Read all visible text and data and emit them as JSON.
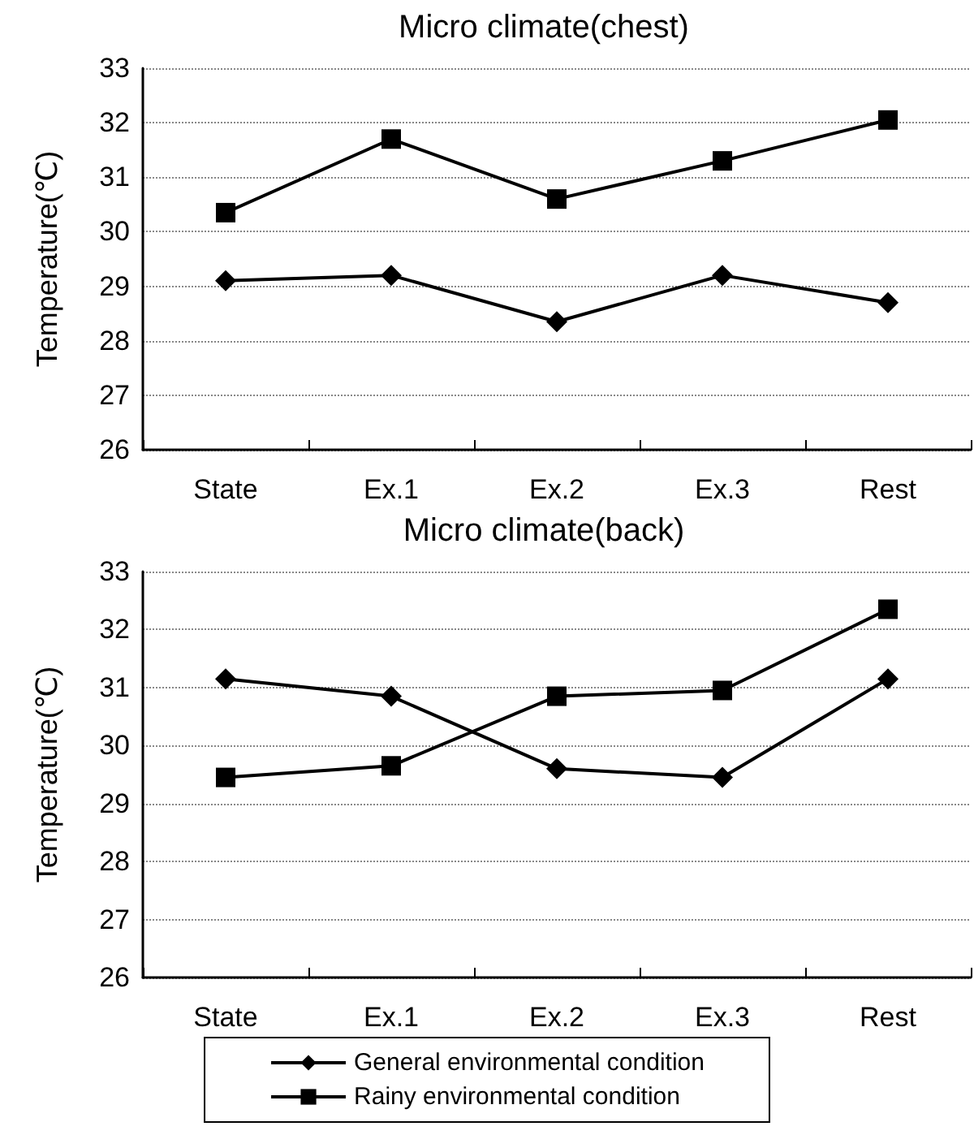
{
  "chart_data": [
    {
      "type": "line",
      "title": "Micro climate(chest)",
      "ylabel": "Temperature(℃)",
      "categories": [
        "State",
        "Ex.1",
        "Ex.2",
        "Ex.3",
        "Rest"
      ],
      "ylim": [
        26,
        33
      ],
      "yticks": [
        26,
        27,
        28,
        29,
        30,
        31,
        32,
        33
      ],
      "grid": "y",
      "legend": false,
      "line_style": "solid",
      "series": [
        {
          "color": "#000000",
          "marker": "diamond",
          "values": [
            29.1,
            29.2,
            28.35,
            29.2,
            28.7
          ]
        },
        {
          "color": "#000000",
          "marker": "square",
          "values": [
            30.35,
            31.7,
            30.6,
            31.3,
            32.05
          ]
        }
      ]
    },
    {
      "type": "line",
      "title": "Micro climate(back)",
      "ylabel": "Temperature(℃)",
      "categories": [
        "State",
        "Ex.1",
        "Ex.2",
        "Ex.3",
        "Rest"
      ],
      "ylim": [
        26,
        33
      ],
      "yticks": [
        26,
        27,
        28,
        29,
        30,
        31,
        32,
        33
      ],
      "grid": "y",
      "legend": "bottom",
      "line_style": "solid",
      "series": [
        {
          "name": "General environmental condition",
          "color": "#000000",
          "marker": "diamond",
          "values": [
            31.15,
            30.85,
            29.6,
            29.45,
            31.15
          ]
        },
        {
          "name": "Rainy environmental condition",
          "color": "#000000",
          "marker": "square",
          "values": [
            29.45,
            29.65,
            30.85,
            30.95,
            32.35
          ]
        }
      ]
    }
  ]
}
